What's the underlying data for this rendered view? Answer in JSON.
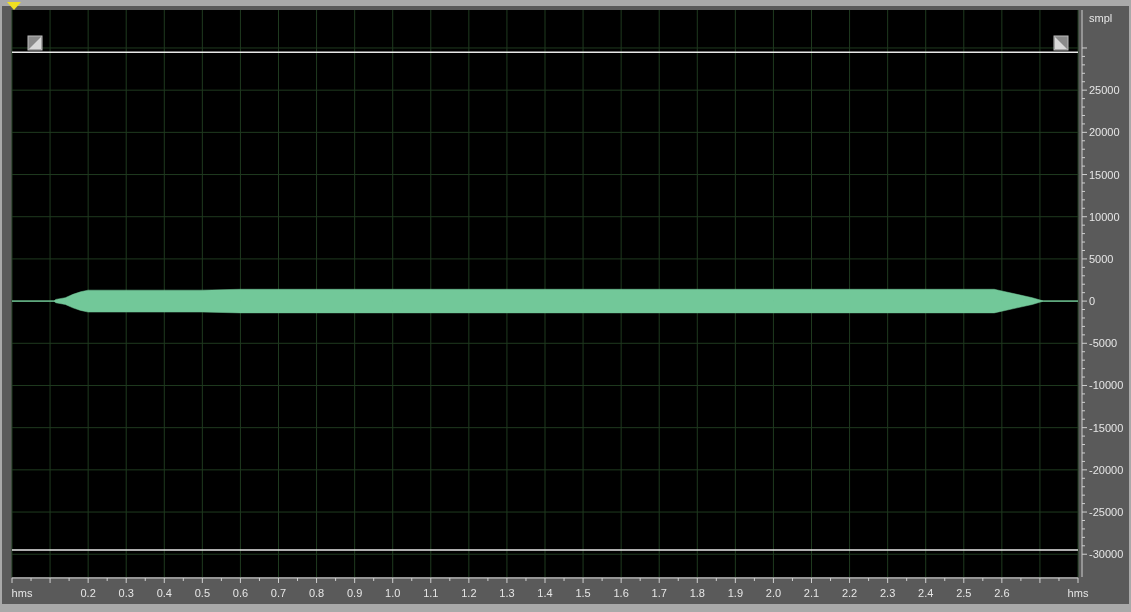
{
  "chart_data": {
    "type": "line",
    "ylabel": "smpl",
    "x": [
      0,
      0.11,
      0.115,
      0.14,
      0.16,
      0.18,
      0.2,
      0.3,
      0.5,
      0.6,
      1.0,
      1.5,
      2.0,
      2.5,
      2.58,
      2.6,
      2.64,
      2.68,
      2.71,
      2.8
    ],
    "series": [
      {
        "color": "#72c899",
        "values": [
          0,
          0,
          0,
          0,
          0,
          0,
          0,
          0,
          0,
          0,
          0,
          0,
          0,
          0,
          0,
          0,
          0,
          0,
          0,
          0
        ],
        "upper": [
          0,
          0,
          200,
          400,
          800,
          1100,
          1300,
          1300,
          1300,
          1400,
          1400,
          1400,
          1400,
          1400,
          1400,
          1200,
          800,
          400,
          0,
          0
        ],
        "lower": [
          0,
          0,
          -200,
          -400,
          -800,
          -1100,
          -1300,
          -1300,
          -1300,
          -1400,
          -1400,
          -1400,
          -1400,
          -1400,
          -1400,
          -1200,
          -800,
          -400,
          0,
          0
        ]
      }
    ],
    "xlim": [
      0,
      2.8
    ],
    "xticks": [
      {
        "value": 0,
        "label": "hms"
      },
      {
        "value": 0.1,
        "label": null
      },
      0.2,
      0.3,
      0.4,
      0.5,
      0.6,
      0.7,
      0.8,
      0.9,
      {
        "value": 1,
        "label": "1.0"
      },
      1.1,
      1.2,
      1.3,
      1.4,
      1.5,
      1.6,
      1.7,
      1.8,
      1.9,
      {
        "value": 2,
        "label": "2.0"
      },
      2.1,
      2.2,
      2.3,
      2.4,
      2.5,
      2.6,
      {
        "value": 2.7,
        "label": null
      },
      {
        "value": 2.8,
        "label": "hms"
      }
    ],
    "ylim": [
      -32700,
      34500
    ],
    "yticks": [
      -30000,
      -25000,
      -20000,
      -15000,
      -10000,
      -5000,
      0,
      5000,
      10000,
      15000,
      20000,
      25000,
      {
        "value": 30000,
        "label": null
      }
    ],
    "grid": true,
    "ref_lines": [
      {
        "axis": "y",
        "value": 29500,
        "color": "#e8e8e8"
      },
      {
        "axis": "y",
        "value": -29500,
        "color": "#e8e8e8"
      }
    ]
  }
}
